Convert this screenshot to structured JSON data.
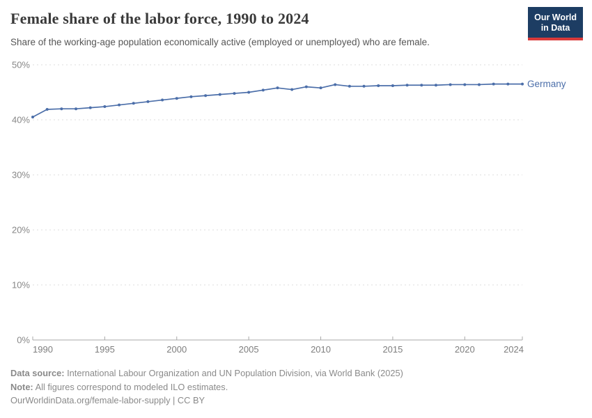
{
  "header": {
    "title": "Female share of the labor force, 1990 to 2024",
    "subtitle": "Share of the working-age population economically active (employed or unemployed) who are female.",
    "logo": {
      "line1": "Our World",
      "line2": "in Data"
    }
  },
  "colors": {
    "line": "#4b6ea9",
    "logo_bg": "#1d3d63",
    "logo_stripe": "#d93a3a",
    "gridline": "#dedede",
    "axis": "#a8a8a8"
  },
  "chart_data": {
    "type": "line",
    "title": "Female share of the labor force, 1990 to 2024",
    "subtitle": "Share of the working-age population economically active (employed or unemployed) who are female.",
    "xlabel": "",
    "ylabel": "",
    "xlim": [
      1990,
      2024
    ],
    "ylim": [
      0,
      50
    ],
    "grid": "horizontal-dashed",
    "legend_position": "end-of-line",
    "x_ticks": [
      {
        "v": 1990,
        "label": "1990"
      },
      {
        "v": 1995,
        "label": "1995"
      },
      {
        "v": 2000,
        "label": "2000"
      },
      {
        "v": 2005,
        "label": "2005"
      },
      {
        "v": 2010,
        "label": "2010"
      },
      {
        "v": 2015,
        "label": "2015"
      },
      {
        "v": 2020,
        "label": "2020"
      },
      {
        "v": 2024,
        "label": "2024"
      }
    ],
    "y_ticks": [
      {
        "v": 0,
        "label": "0%"
      },
      {
        "v": 10,
        "label": "10%"
      },
      {
        "v": 20,
        "label": "20%"
      },
      {
        "v": 30,
        "label": "30%"
      },
      {
        "v": 40,
        "label": "40%"
      },
      {
        "v": 50,
        "label": "50%"
      }
    ],
    "series": [
      {
        "name": "Germany",
        "color": "#4b6ea9",
        "x": [
          1990,
          1991,
          1992,
          1993,
          1994,
          1995,
          1996,
          1997,
          1998,
          1999,
          2000,
          2001,
          2002,
          2003,
          2004,
          2005,
          2006,
          2007,
          2008,
          2009,
          2010,
          2011,
          2012,
          2013,
          2014,
          2015,
          2016,
          2017,
          2018,
          2019,
          2020,
          2021,
          2022,
          2023,
          2024
        ],
        "values": [
          40.5,
          41.9,
          42.0,
          42.0,
          42.2,
          42.4,
          42.7,
          43.0,
          43.3,
          43.6,
          43.9,
          44.2,
          44.4,
          44.6,
          44.8,
          45.0,
          45.4,
          45.8,
          45.5,
          46.0,
          45.8,
          46.4,
          46.1,
          46.1,
          46.2,
          46.2,
          46.3,
          46.3,
          46.3,
          46.4,
          46.4,
          46.4,
          46.5,
          46.5,
          46.5
        ]
      }
    ]
  },
  "footer": {
    "data_source_label": "Data source:",
    "data_source_text": "International Labour Organization and UN Population Division, via World Bank (2025)",
    "note_label": "Note:",
    "note_text": "All figures correspond to modeled ILO estimates.",
    "link": "OurWorldinData.org/female-labor-supply | CC BY"
  }
}
